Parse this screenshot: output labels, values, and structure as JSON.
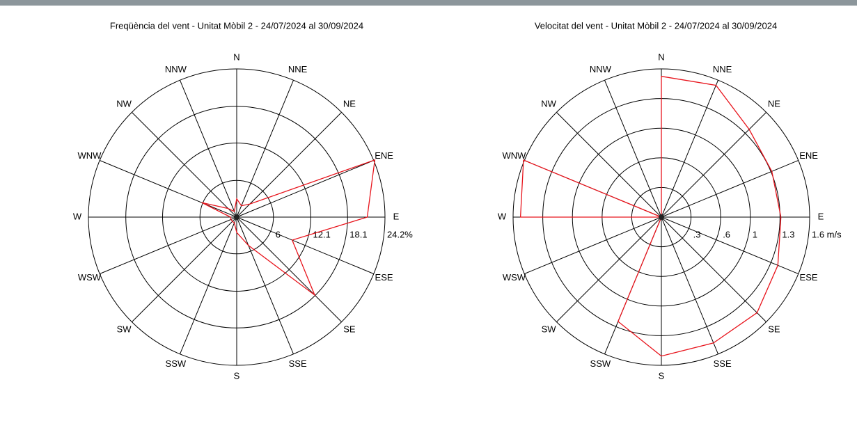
{
  "chart_data": [
    {
      "type": "radar",
      "title": "Freqüència del vent - Unitat Mòbil 2 - 24/07/2024 al 30/09/2024",
      "categories": [
        "N",
        "NNE",
        "NE",
        "ENE",
        "E",
        "ESE",
        "SE",
        "SSE",
        "S",
        "SSW",
        "SW",
        "WSW",
        "W",
        "WNW",
        "NW",
        "NNW"
      ],
      "values": [
        3,
        2,
        3,
        24.4,
        21.3,
        9.8,
        18,
        5,
        2.5,
        1,
        1,
        1,
        1,
        6.2,
        2,
        1
      ],
      "color": "#e8141c",
      "rlim": [
        0,
        24.2
      ],
      "rticks": [
        6,
        12.1,
        18.1,
        {
          "value": 24.2,
          "label": "24.2%"
        }
      ]
    },
    {
      "type": "radar",
      "title": "Velocitat del vent - Unitat Mòbil 2 - 24/07/2024 al 30/09/2024",
      "categories": [
        "N",
        "NNE",
        "NE",
        "ENE",
        "E",
        "ESE",
        "SE",
        "SSE",
        "S",
        "SSW",
        "SW",
        "WSW",
        "W",
        "WNW",
        "NW",
        "NNW"
      ],
      "values": [
        1.52,
        1.54,
        1.34,
        1.29,
        1.29,
        1.36,
        1.46,
        1.47,
        1.5,
        1.22,
        0,
        0,
        1.52,
        1.61,
        0,
        0
      ],
      "color": "#e8141c",
      "rlim": [
        0,
        1.6
      ],
      "rticks": [
        {
          "value": 0.32,
          "label": ".3"
        },
        {
          "value": 0.64,
          "label": ".6"
        },
        {
          "value": 0.96,
          "label": "1"
        },
        {
          "value": 1.28,
          "label": "1.3"
        },
        {
          "value": 1.6,
          "label": "1.6 m/s"
        }
      ]
    }
  ]
}
